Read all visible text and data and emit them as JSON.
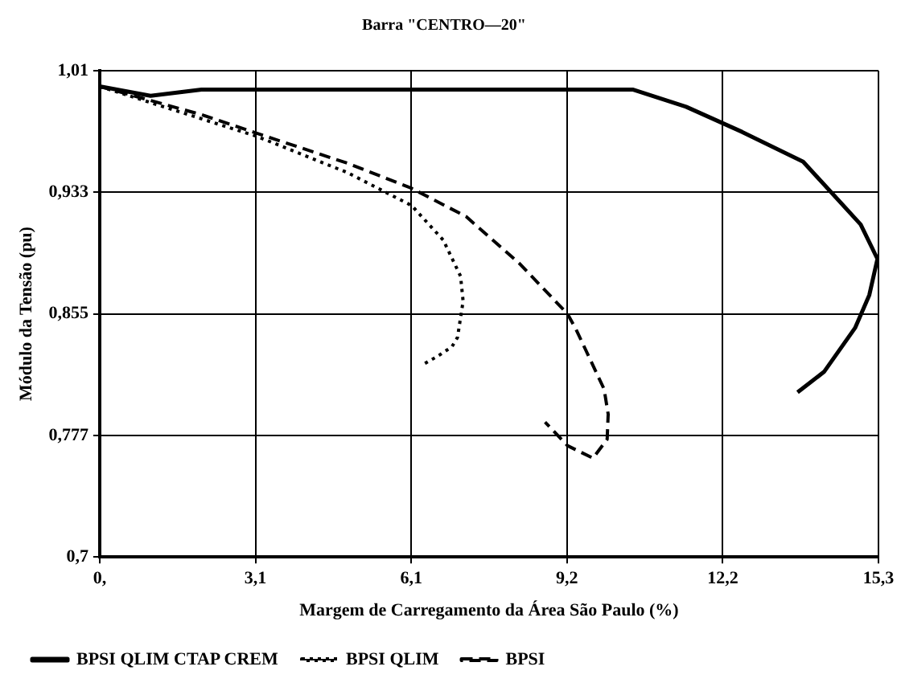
{
  "chart_data": {
    "type": "line",
    "title": "Barra \"CENTRO—20\"",
    "xlabel": "Margem de Carregamento da Área São Paulo (%)",
    "ylabel": "Módulo da Tensão (pu)",
    "xlim": [
      0,
      15.3
    ],
    "xticks": [
      {
        "value": 0,
        "label": "0,"
      },
      {
        "value": 3.06,
        "label": "3,1"
      },
      {
        "value": 6.12,
        "label": "6,1"
      },
      {
        "value": 9.18,
        "label": "9,2"
      },
      {
        "value": 12.24,
        "label": "12,2"
      },
      {
        "value": 15.3,
        "label": "15,3"
      }
    ],
    "ylim": [
      0.7,
      1.01
    ],
    "yticks": [
      {
        "value": 0.7,
        "label": "0,7"
      },
      {
        "value": 0.7775,
        "label": "0,777"
      },
      {
        "value": 0.855,
        "label": "0,855"
      },
      {
        "value": 0.9325,
        "label": "0,933"
      },
      {
        "value": 1.01,
        "label": "1,01"
      }
    ],
    "grid": true,
    "legend": "bottom",
    "marker": "none",
    "series": [
      {
        "name": "BPSI QLIM CTAP CREM",
        "color": "#000000",
        "line_style": "solid",
        "x": [
          0,
          1.0,
          2.0,
          9.36,
          10.47,
          11.52,
          12.62,
          13.82,
          14.95,
          15.28,
          15.12,
          14.84,
          14.23,
          13.95,
          13.71
        ],
        "values": [
          1.0,
          0.994,
          0.998,
          0.998,
          0.998,
          0.987,
          0.971,
          0.952,
          0.912,
          0.89,
          0.867,
          0.846,
          0.818,
          0.811,
          0.805
        ]
      },
      {
        "name": "BPSI QLIM",
        "color": "#000000",
        "line_style": "dotted",
        "x": [
          0,
          3.1,
          4.87,
          6.13,
          6.75,
          7.09,
          7.14,
          7.03,
          6.92,
          6.64,
          6.37
        ],
        "values": [
          1.0,
          0.968,
          0.945,
          0.924,
          0.902,
          0.879,
          0.863,
          0.84,
          0.834,
          0.828,
          0.823
        ]
      },
      {
        "name": "BPSI",
        "color": "#000000",
        "line_style": "dashed",
        "x": [
          0,
          2.0,
          3.1,
          4.87,
          6.13,
          7.2,
          8.25,
          9.19,
          9.36,
          9.91,
          9.99,
          9.97,
          9.69,
          9.19,
          8.75
        ],
        "values": [
          1.0,
          0.982,
          0.97,
          0.951,
          0.935,
          0.917,
          0.887,
          0.855,
          0.845,
          0.807,
          0.791,
          0.775,
          0.763,
          0.771,
          0.786
        ]
      }
    ]
  }
}
